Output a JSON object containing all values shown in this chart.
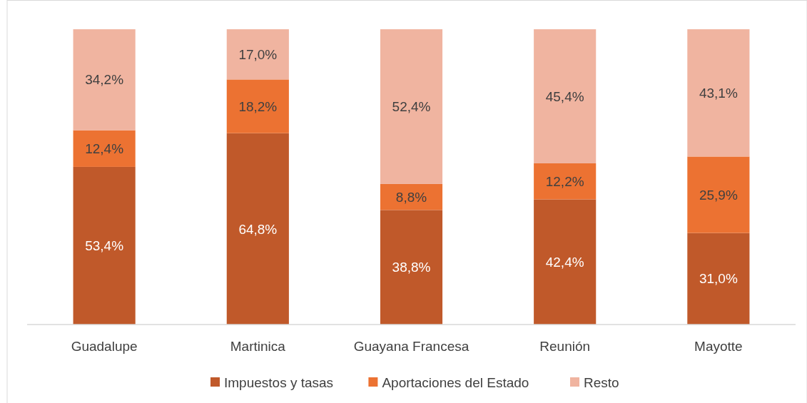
{
  "chart_data": {
    "type": "bar",
    "stacked": true,
    "categories": [
      "Guadalupe",
      "Martinica",
      "Guayana Francesa",
      "Reunión",
      "Mayotte"
    ],
    "legend": "bottom",
    "series": [
      {
        "name": "Impuestos y tasas",
        "color": "#c0592a",
        "values": [
          53.4,
          64.8,
          38.8,
          42.4,
          31.0
        ],
        "value_labels": [
          "53,4%",
          "64,8%",
          "38,8%",
          "42,4%",
          "31,0%"
        ]
      },
      {
        "name": "Aportaciones del Estado",
        "color": "#ec7232",
        "values": [
          12.4,
          18.2,
          8.8,
          12.2,
          25.9
        ],
        "value_labels": [
          "12,4%",
          "18,2%",
          "8,8%",
          "12,2%",
          "25,9%"
        ]
      },
      {
        "name": "Resto",
        "color": "#f0b4a0",
        "values": [
          34.2,
          17.0,
          52.4,
          45.4,
          43.1
        ],
        "value_labels": [
          "34,2%",
          "17,0%",
          "52,4%",
          "45,4%",
          "43,1%"
        ]
      }
    ]
  }
}
